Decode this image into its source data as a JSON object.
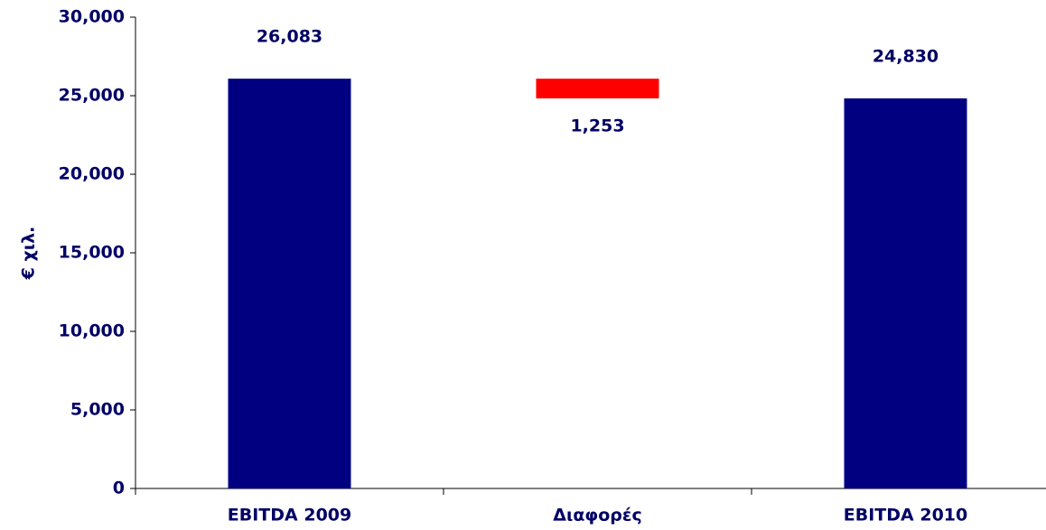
{
  "chart_data": {
    "type": "waterfall",
    "y_label": "€ χιλ.",
    "categories": [
      "EBITDA 2009",
      "Διαφορές",
      "EBITDA 2010"
    ],
    "values": [
      26083,
      1253,
      24830
    ],
    "value_labels": [
      "26,083",
      "1,253",
      "24,830"
    ],
    "measures": [
      "total",
      "decrease",
      "total"
    ],
    "colors": [
      "#000080",
      "#ff0000",
      "#000080"
    ],
    "ylim": [
      0,
      30000
    ],
    "yticks": [
      0,
      {
        "value": 5000,
        "label": "5,000"
      },
      {
        "value": 10000,
        "label": "10,000"
      },
      {
        "value": 15000,
        "label": "15,000"
      },
      {
        "value": 20000,
        "label": "20,000"
      },
      {
        "value": 25000,
        "label": "25,000"
      },
      {
        "value": 30000,
        "label": "30,000"
      }
    ]
  }
}
